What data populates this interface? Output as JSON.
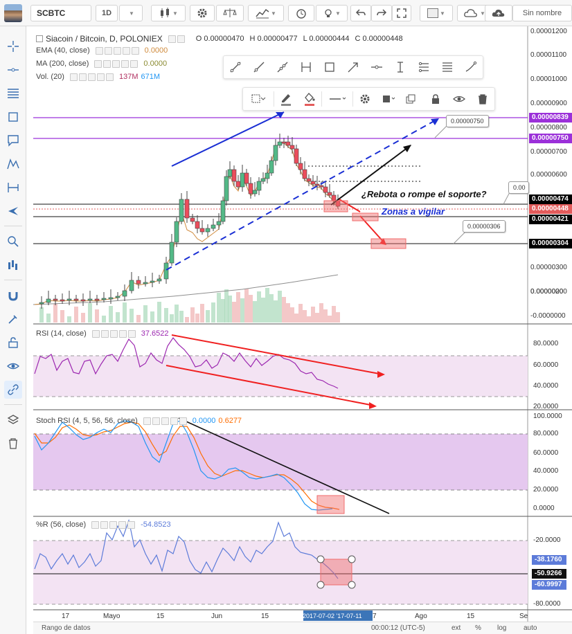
{
  "toolbar": {
    "symbol": "SCBTC",
    "interval": "1D",
    "template_label": "Sin nombre",
    "icons": [
      "candles-icon",
      "gear-icon",
      "scale-icon",
      "indicators-icon",
      "alert-clock-icon",
      "lightbulb-icon",
      "undo-icon",
      "redo-icon",
      "fullscreen-icon",
      "color-picker-icon",
      "cloud-icon",
      "cloud-upload-icon"
    ]
  },
  "left_tools": [
    "crosshair-icon",
    "horizontal-line-icon",
    "fib-icon",
    "rectangle-icon",
    "note-icon",
    "pattern-icon",
    "measure-icon",
    "plane-icon",
    "zoom-icon",
    "bars-pattern-icon",
    "magnet-icon",
    "brush-lock-icon",
    "lock-icon",
    "eye-icon",
    "link-icon",
    "layers-icon",
    "trash-icon"
  ],
  "main_pane": {
    "title": "Siacoin / Bitcoin, D, POLONIEX",
    "ohlc": {
      "o": "O 0.00000470",
      "h": "H 0.00000477",
      "l": "L 0.00000444",
      "c": "C 0.00000448"
    },
    "ema": {
      "name": "EMA (40, close)",
      "value": "0.0000"
    },
    "ma": {
      "name": "MA (200, close)",
      "value": "0.0000"
    },
    "vol": {
      "name": "Vol. (20)",
      "v1": "137M",
      "v2": "671M"
    },
    "annotations": {
      "question": "¿Rebota o rompe el soporte?",
      "zones": "Zonas a vigilar",
      "callout_750": "0.00000750",
      "callout_306": "0.00000306",
      "callout_cut": "0.00"
    },
    "axis_labels": [
      "0.00001200",
      "0.00001100",
      "0.00001000",
      "0.00000900",
      "0.00000800",
      "0.00000700",
      "0.00000600",
      "0.00000500",
      "0.00000300",
      "0.00000200",
      "0.00000100",
      "0.0000000",
      "-0.0000000"
    ],
    "price_tags": [
      {
        "label": "0.00000839",
        "color": "#9b30d9"
      },
      {
        "label": "0.00000750",
        "color": "#9b30d9"
      },
      {
        "label": "0.00000474",
        "color": "#000000"
      },
      {
        "label": "0.00000448",
        "color": "#e35b5b"
      },
      {
        "label": "0.00000421",
        "color": "#000000"
      },
      {
        "label": "0.00000304",
        "color": "#000000"
      }
    ]
  },
  "rsi_pane": {
    "name": "RSI (14, close)",
    "value": "37.6522",
    "axis": [
      "80.0000",
      "60.0000",
      "40.0000",
      "20.0000"
    ]
  },
  "stoch_pane": {
    "name": "Stoch RSI (4, 5, 56, 56, close)",
    "k": "0.0000",
    "d": "0.6277",
    "axis": [
      "100.0000",
      "80.0000",
      "60.0000",
      "40.0000",
      "20.0000",
      "0.0000"
    ]
  },
  "wr_pane": {
    "name": "%R (56, close)",
    "value": "-54.8523",
    "axis": [
      "-20.0000",
      "-80.0000"
    ],
    "tags": [
      "-38.1760",
      "-50.9266",
      "-60.9997"
    ]
  },
  "time_axis": {
    "labels": [
      "17",
      "Mayo",
      "15",
      "Jun",
      "15",
      "Ago",
      "15",
      "Se"
    ],
    "selected": "2017-07-02 '17-07-11",
    "cut": "7"
  },
  "bottom_bar": {
    "range": "Rango de datos",
    "time": "00:00:12 (UTC-5)",
    "ext": "ext",
    "pct": "%",
    "log": "log",
    "auto": "auto"
  },
  "colors": {
    "purple_line": "#9b30d9",
    "up": "#53b987",
    "down": "#eb4d5c",
    "rsi": "#9c27b0",
    "stoch_k": "#2196f3",
    "stoch_d": "#ff6d00",
    "wr": "#7e57c2"
  }
}
